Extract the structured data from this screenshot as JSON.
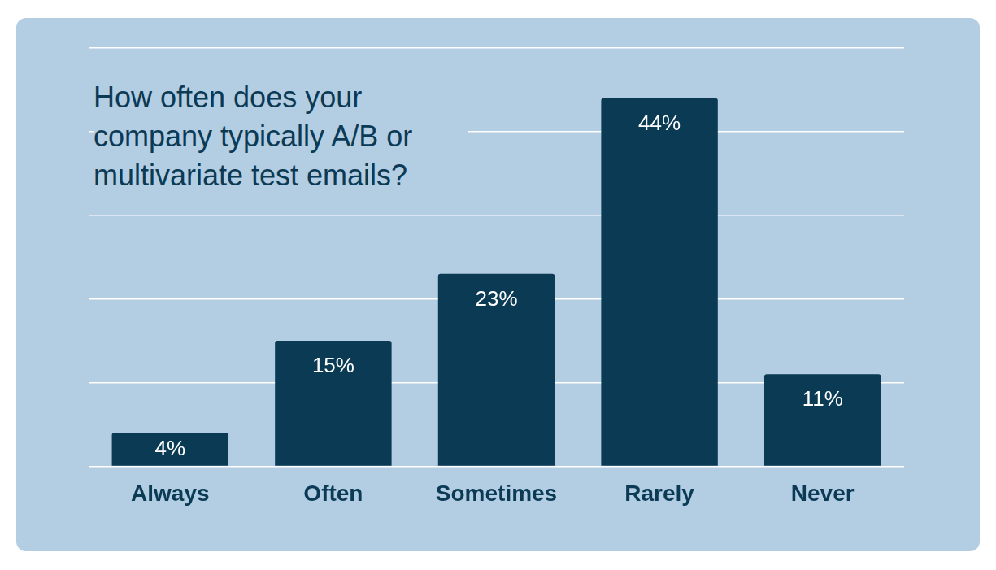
{
  "chart_data": {
    "type": "bar",
    "title": "How often does your company typically A/B or multivariate test emails?",
    "categories": [
      "Always",
      "Often",
      "Sometimes",
      "Rarely",
      "Never"
    ],
    "values": [
      4,
      15,
      23,
      44,
      11
    ],
    "value_labels": [
      "4%",
      "15%",
      "23%",
      "44%",
      "11%"
    ],
    "color": "#0b3a55",
    "ylim": [
      0,
      50
    ],
    "yticks": [
      0,
      10,
      20,
      30,
      40,
      50
    ],
    "grid": true,
    "data_labels": true,
    "tick_labels": "x"
  }
}
